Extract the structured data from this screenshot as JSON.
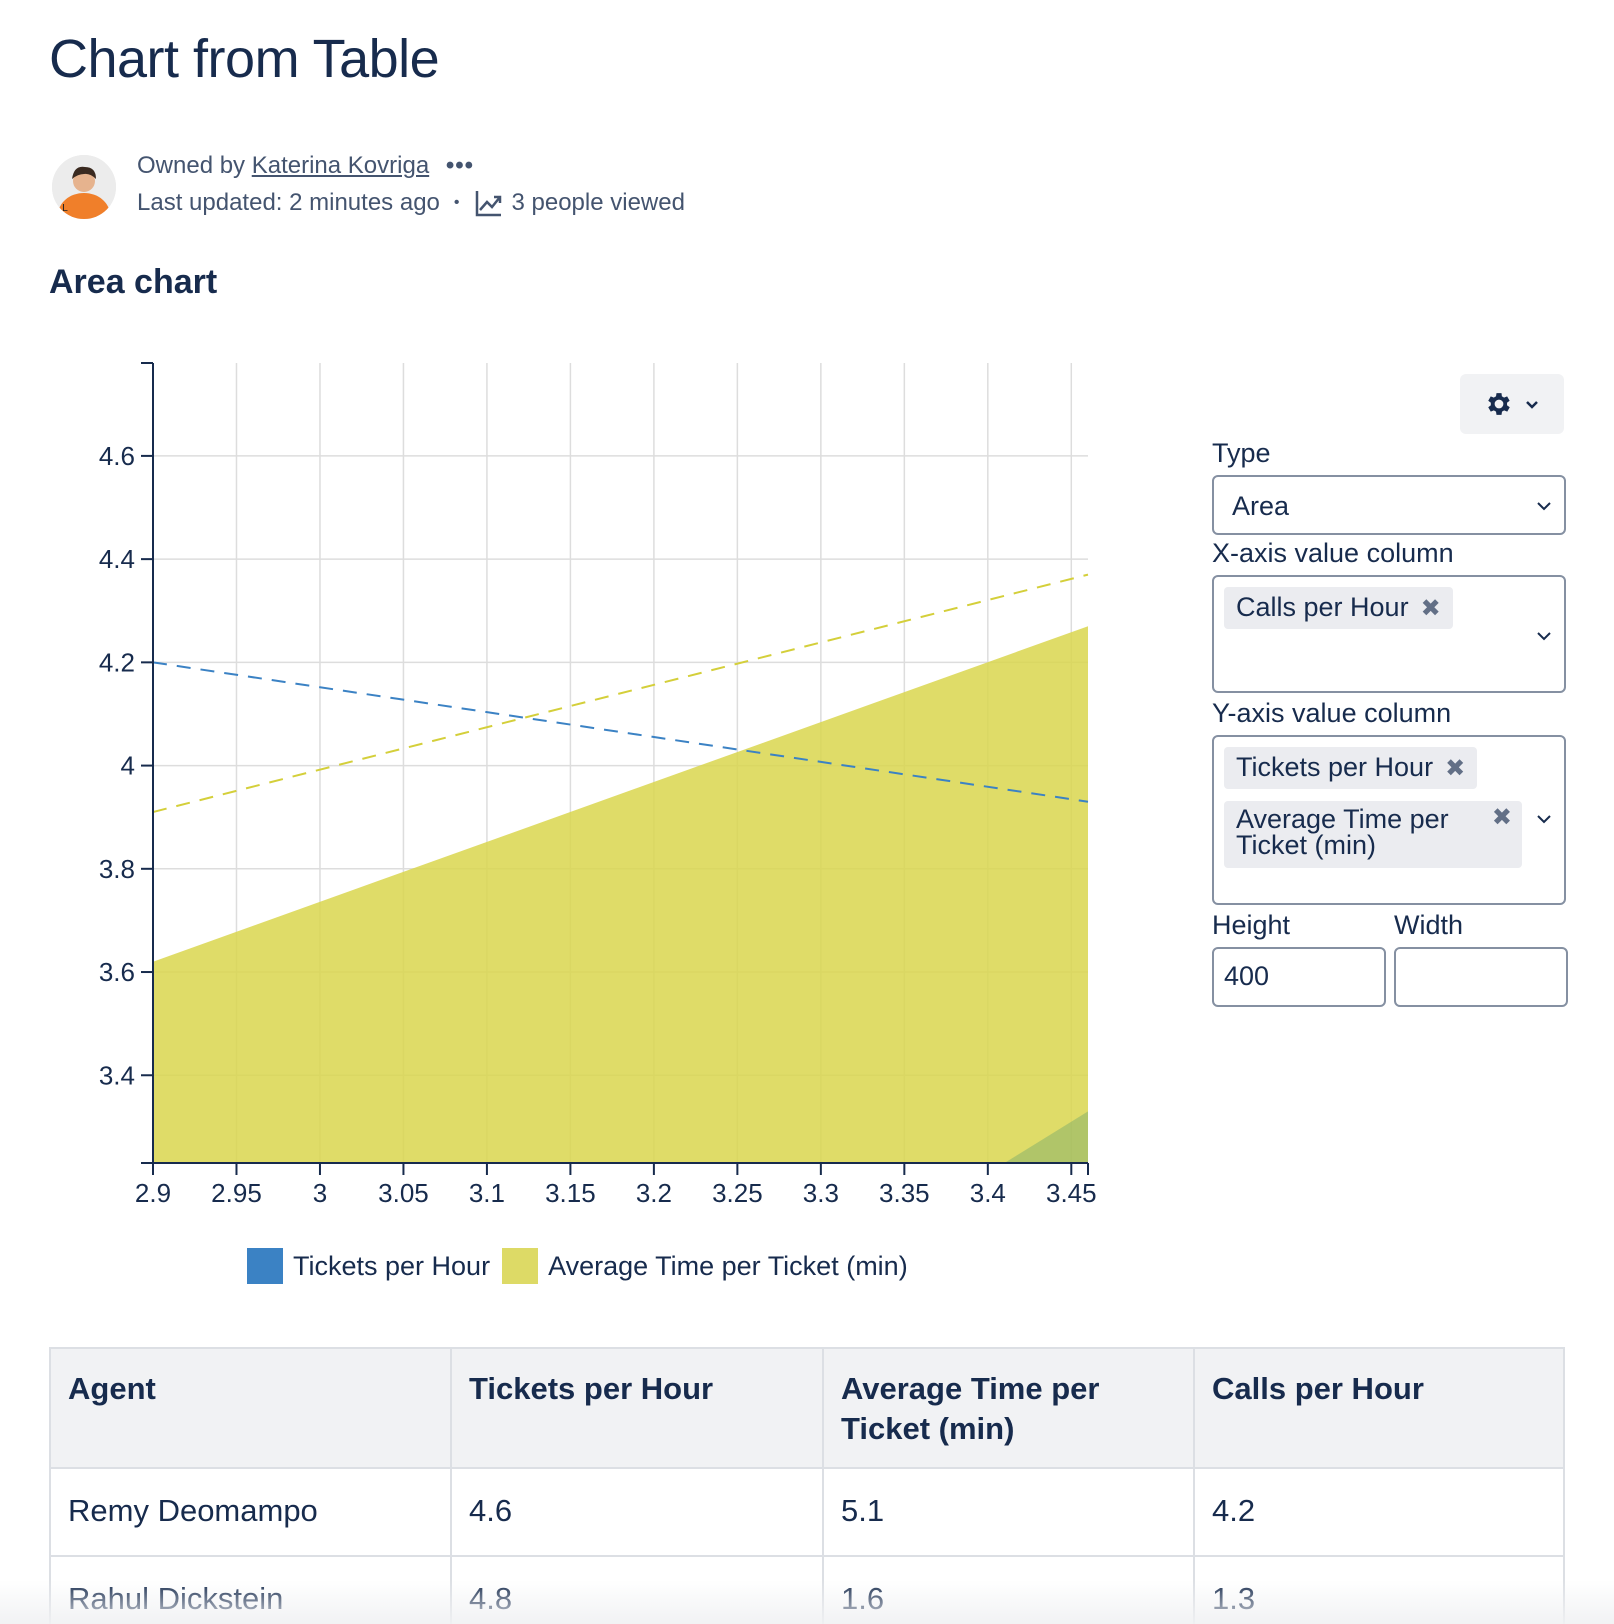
{
  "page": {
    "title": "Chart from Table",
    "owned_by_prefix": "Owned by",
    "owner_name": "Katerina Kovriga",
    "more_dots": "•••",
    "last_updated": "Last updated: 2 minutes ago",
    "separator": "•",
    "views": "3 people viewed",
    "section_heading": "Area chart"
  },
  "icons": {
    "more": "more-horizontal-icon",
    "trend": "trend-up-icon",
    "gear": "gear-icon",
    "chevron": "chevron-down-icon",
    "remove": "close-icon"
  },
  "chart_data": {
    "type": "area",
    "x_ticks": [
      "2.9",
      "2.95",
      "3",
      "3.05",
      "3.1",
      "3.15",
      "3.2",
      "3.25",
      "3.3",
      "3.35",
      "3.4",
      "3.45"
    ],
    "y_ticks": [
      "3.4",
      "3.6",
      "3.8",
      "4",
      "4.2",
      "4.4",
      "4.6"
    ],
    "xlim": [
      2.9,
      3.46
    ],
    "ylim": [
      3.23,
      4.78
    ],
    "grid": true,
    "legend_position": "bottom",
    "series": [
      {
        "name": "Tickets per Hour",
        "color": "#3b82c4",
        "area_points": [
          [
            3.41,
            3.23
          ],
          [
            3.46,
            3.33
          ]
        ],
        "trendline": [
          [
            2.9,
            4.2
          ],
          [
            3.46,
            3.93
          ]
        ]
      },
      {
        "name": "Average Time per Ticket (min)",
        "color": "#d9d64e",
        "area_points": [
          [
            2.9,
            3.62
          ],
          [
            3.46,
            4.27
          ]
        ],
        "trendline": [
          [
            2.9,
            3.91
          ],
          [
            3.46,
            4.37
          ]
        ]
      }
    ]
  },
  "config": {
    "type_label": "Type",
    "type_value": "Area",
    "x_axis_label": "X-axis value column",
    "x_axis_chips": [
      "Calls per Hour"
    ],
    "y_axis_label": "Y-axis value column",
    "y_axis_chip_1": "Tickets per Hour",
    "y_axis_chip_2_line1": "Average Time per",
    "y_axis_chip_2_line2": "Ticket (min)",
    "height_label": "Height",
    "height_value": "400",
    "width_label": "Width",
    "width_value": ""
  },
  "table": {
    "headers": [
      "Agent",
      "Tickets per Hour",
      "Average Time per Ticket (min)",
      "Calls per Hour"
    ],
    "rows": [
      [
        "Remy Deomampo",
        "4.6",
        "5.1",
        "4.2"
      ],
      [
        "Rahul Dickstein",
        "4.8",
        "1.6",
        "1.3"
      ]
    ]
  }
}
